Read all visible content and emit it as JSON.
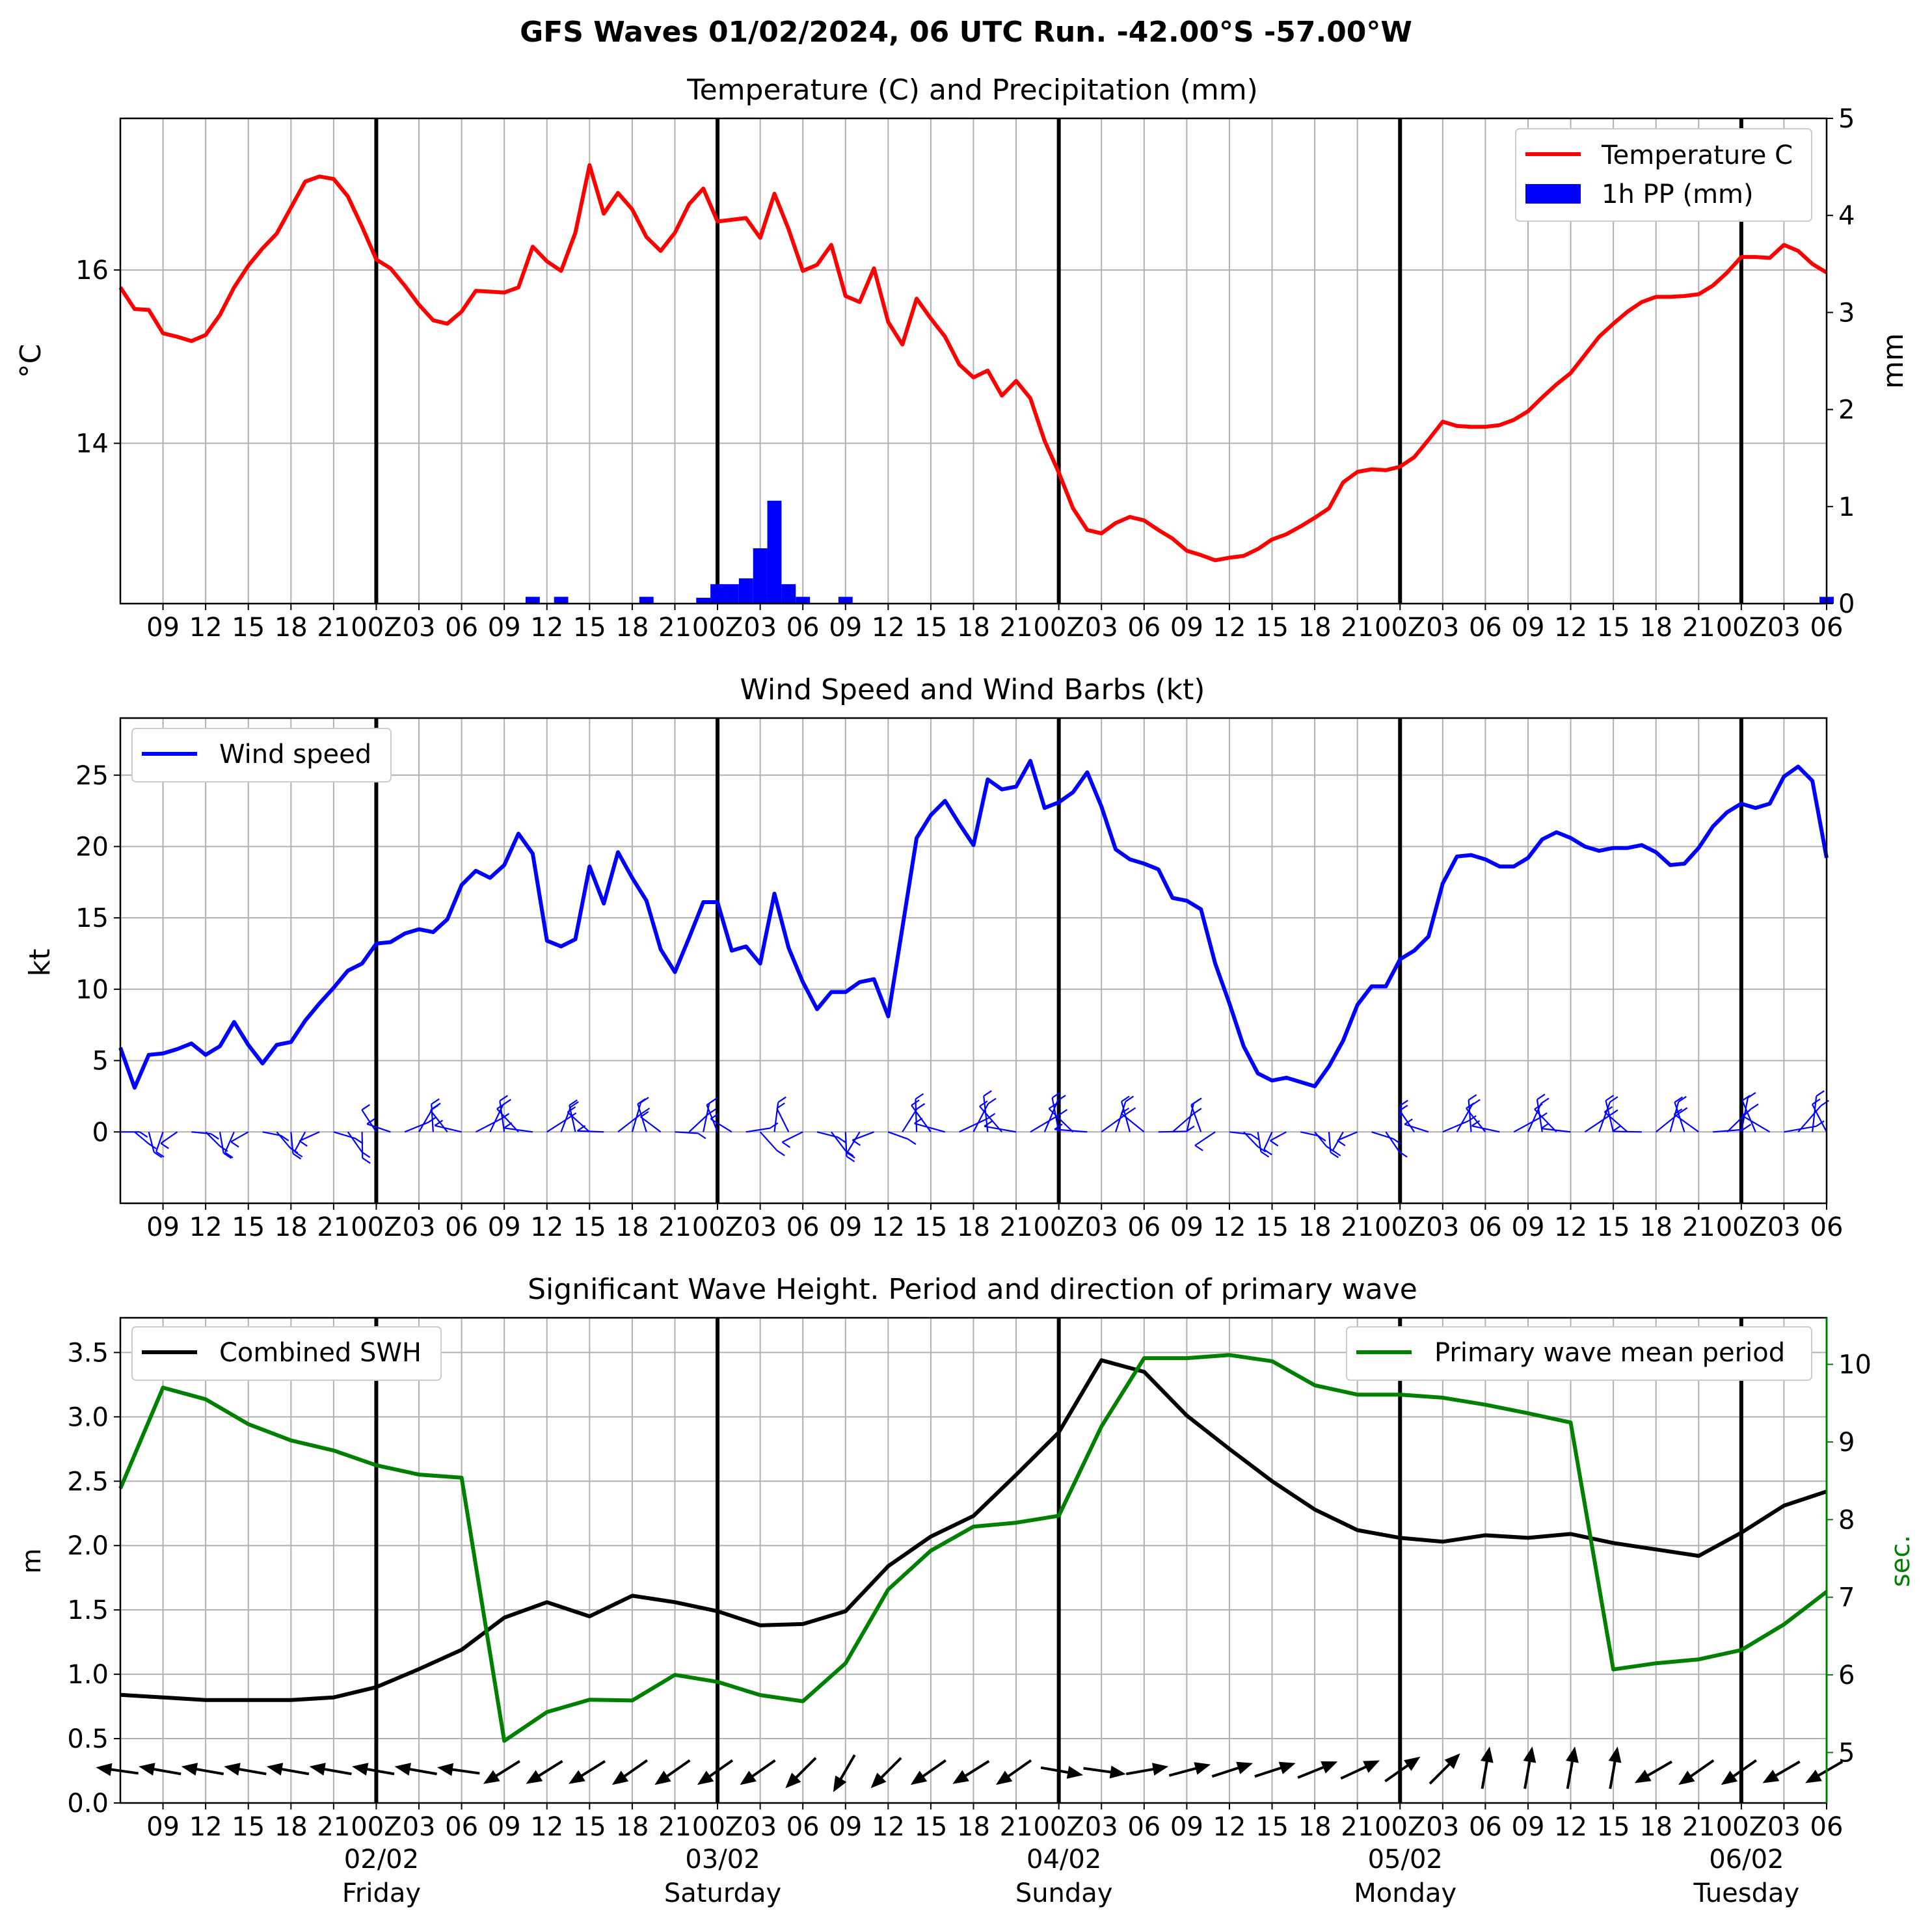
{
  "figure_title": "GFS Waves 01/02/2024, 06 UTC Run. -42.00°S -57.00°W",
  "day_labels": [
    {
      "date": "02/02",
      "day": "Friday"
    },
    {
      "date": "03/02",
      "day": "Saturday"
    },
    {
      "date": "04/02",
      "day": "Sunday"
    },
    {
      "date": "05/02",
      "day": "Monday"
    },
    {
      "date": "06/02",
      "day": "Tuesday"
    }
  ],
  "chart_data": [
    {
      "type": "line",
      "title": "Temperature (C) and Precipitation (mm)",
      "x_unit": "hours since 01/02/2024 06 UTC",
      "xlim": [
        6,
        126
      ],
      "x_ticks": [
        9,
        12,
        15,
        18,
        21,
        24,
        27,
        30,
        33,
        36,
        39,
        42,
        45,
        48,
        51,
        54,
        57,
        60,
        63,
        66,
        69,
        72,
        75,
        78,
        81,
        84,
        87,
        90,
        93,
        96,
        99,
        102,
        105,
        108,
        111,
        114,
        117,
        120,
        123,
        126
      ],
      "x_tick_labels": [
        "09",
        "12",
        "15",
        "18",
        "21",
        "00Z",
        "03",
        "06",
        "09",
        "12",
        "15",
        "18",
        "21",
        "00Z",
        "03",
        "06",
        "09",
        "12",
        "15",
        "18",
        "21",
        "00Z",
        "03",
        "06",
        "09",
        "12",
        "15",
        "18",
        "21",
        "00Z",
        "03",
        "06",
        "09",
        "12",
        "15",
        "18",
        "21",
        "00Z",
        "03",
        "06"
      ],
      "ylabel": "$^\\circ$C",
      "y_ticks": [
        14,
        16
      ],
      "ylim": [
        12.15,
        17.75
      ],
      "y2label": "mm",
      "y2_ticks": [
        0,
        1,
        2,
        3,
        4,
        5
      ],
      "y2lim": [
        0,
        5
      ],
      "grid": true,
      "legend": {
        "position": "top-right",
        "entries": [
          "Temperature C",
          "1h PP (mm)"
        ]
      },
      "series": [
        {
          "name": "Temperature C",
          "color": "#ff0000",
          "x": [
            6,
            7,
            8,
            9,
            10,
            11,
            12,
            13,
            14,
            15,
            16,
            17,
            18,
            19,
            20,
            21,
            22,
            23,
            24,
            25,
            26,
            27,
            28,
            29,
            30,
            31,
            32,
            33,
            34,
            35,
            36,
            37,
            38,
            39,
            40,
            41,
            42,
            43,
            44,
            45,
            46,
            47,
            48,
            49,
            50,
            51,
            52,
            53,
            54,
            55,
            56,
            57,
            58,
            59,
            60,
            61,
            62,
            63,
            64,
            65,
            66,
            67,
            68,
            69,
            70,
            71,
            72,
            73,
            74,
            75,
            76,
            77,
            78,
            79,
            80,
            81,
            82,
            83,
            84,
            85,
            86,
            87,
            88,
            89,
            90,
            91,
            92,
            93,
            94,
            95,
            96,
            97,
            98,
            99,
            100,
            101,
            102,
            103,
            104,
            105,
            106,
            107,
            108,
            109,
            110,
            111,
            112,
            113,
            114,
            115,
            116,
            117,
            118,
            119,
            120,
            121,
            122,
            123,
            124,
            125,
            126
          ],
          "y": [
            15.8,
            15.55,
            15.54,
            15.27,
            15.23,
            15.18,
            15.25,
            15.48,
            15.8,
            16.05,
            16.25,
            16.42,
            16.72,
            17.02,
            17.08,
            17.05,
            16.85,
            16.5,
            16.12,
            16.02,
            15.82,
            15.6,
            15.42,
            15.38,
            15.52,
            15.76,
            15.75,
            15.74,
            15.8,
            16.27,
            16.1,
            15.99,
            16.43,
            17.21,
            16.65,
            16.89,
            16.7,
            16.38,
            16.22,
            16.43,
            16.76,
            16.94,
            16.56,
            16.58,
            16.6,
            16.37,
            16.88,
            16.47,
            15.99,
            16.06,
            16.29,
            15.7,
            15.63,
            16.02,
            15.4,
            15.14,
            15.67,
            15.44,
            15.23,
            14.91,
            14.76,
            14.84,
            14.55,
            14.72,
            14.52,
            14.03,
            13.66,
            13.25,
            13.0,
            12.96,
            13.08,
            13.15,
            13.11,
            13.0,
            12.9,
            12.76,
            12.71,
            12.65,
            12.68,
            12.7,
            12.78,
            12.89,
            12.95,
            13.04,
            13.14,
            13.25,
            13.55,
            13.67,
            13.7,
            13.69,
            13.73,
            13.84,
            14.04,
            14.25,
            14.2,
            14.19,
            14.19,
            14.21,
            14.27,
            14.37,
            14.53,
            14.68,
            14.81,
            15.02,
            15.23,
            15.38,
            15.52,
            15.63,
            15.69,
            15.69,
            15.7,
            15.72,
            15.82,
            15.97,
            16.15,
            16.15,
            16.14,
            16.29,
            16.22,
            16.07,
            15.97
          ]
        },
        {
          "name": "1h PP (mm)",
          "type": "bar",
          "color": "#0000ff",
          "x": [
            35,
            37,
            43,
            47,
            48,
            49,
            50,
            51,
            52,
            53,
            54,
            55,
            57,
            126
          ],
          "y": [
            0.07,
            0.07,
            0.07,
            0.06,
            0.2,
            0.2,
            0.26,
            0.57,
            1.06,
            0.2,
            0.07,
            0.0,
            0.07,
            0.07
          ]
        }
      ]
    },
    {
      "type": "line",
      "title": "Wind Speed and Wind Barbs (kt)",
      "xlim": [
        6,
        126
      ],
      "ylabel": "kt",
      "y_ticks": [
        0,
        5,
        10,
        15,
        20,
        25
      ],
      "ylim": [
        -5,
        29
      ],
      "grid": true,
      "legend": {
        "position": "top-left",
        "entries": [
          "Wind speed"
        ]
      },
      "series": [
        {
          "name": "Wind speed",
          "color": "#0000ff",
          "x": [
            6,
            7,
            8,
            9,
            10,
            11,
            12,
            13,
            14,
            15,
            16,
            17,
            18,
            19,
            20,
            21,
            22,
            23,
            24,
            25,
            26,
            27,
            28,
            29,
            30,
            31,
            32,
            33,
            34,
            35,
            36,
            37,
            38,
            39,
            40,
            41,
            42,
            43,
            44,
            45,
            46,
            47,
            48,
            49,
            50,
            51,
            52,
            53,
            54,
            55,
            56,
            57,
            58,
            59,
            60,
            61,
            62,
            63,
            64,
            65,
            66,
            67,
            68,
            69,
            70,
            71,
            72,
            73,
            74,
            75,
            76,
            77,
            78,
            79,
            80,
            81,
            82,
            83,
            84,
            85,
            86,
            87,
            88,
            89,
            90,
            91,
            92,
            93,
            94,
            95,
            96,
            97,
            98,
            99,
            100,
            101,
            102,
            103,
            104,
            105,
            106,
            107,
            108,
            109,
            110,
            111,
            112,
            113,
            114,
            115,
            116,
            117,
            118,
            119,
            120,
            121,
            122,
            123,
            124,
            125,
            126
          ],
          "y": [
            5.9,
            3.1,
            5.4,
            5.5,
            5.8,
            6.2,
            5.4,
            6.0,
            7.7,
            6.1,
            4.8,
            6.1,
            6.3,
            7.8,
            9.0,
            10.1,
            11.3,
            11.8,
            13.2,
            13.3,
            13.9,
            14.2,
            14.0,
            14.9,
            17.3,
            18.3,
            17.8,
            18.7,
            20.9,
            19.5,
            13.4,
            13.0,
            13.5,
            18.6,
            16.0,
            19.6,
            17.8,
            16.2,
            12.8,
            11.2,
            13.6,
            16.1,
            16.1,
            12.7,
            13.0,
            11.8,
            16.7,
            12.9,
            10.5,
            8.6,
            9.8,
            9.8,
            10.5,
            10.7,
            8.1,
            14.3,
            20.6,
            22.2,
            23.2,
            21.6,
            20.1,
            24.7,
            24.0,
            24.2,
            26.0,
            22.7,
            23.1,
            23.8,
            25.2,
            22.8,
            19.8,
            19.1,
            18.8,
            18.4,
            16.4,
            16.2,
            15.6,
            11.8,
            9.0,
            6.0,
            4.1,
            3.6,
            3.8,
            3.5,
            3.2,
            4.6,
            6.4,
            8.9,
            10.2,
            10.2,
            12.1,
            12.7,
            13.7,
            17.4,
            19.3,
            19.4,
            19.1,
            18.6,
            18.6,
            19.2,
            20.5,
            21.0,
            20.6,
            20.0,
            19.7,
            19.9,
            19.9,
            20.1,
            19.6,
            18.7,
            18.8,
            19.9,
            21.4,
            22.4,
            23.0,
            22.7,
            23.0,
            24.9,
            25.6,
            24.6,
            19.2
          ]
        }
      ]
    },
    {
      "type": "line",
      "title": "Significant Wave Height. Period and direction of primary wave",
      "xlim": [
        6,
        126
      ],
      "ylabel": "m",
      "y_ticks": [
        0.0,
        0.5,
        1.0,
        1.5,
        2.0,
        2.5,
        3.0,
        3.5
      ],
      "ylim": [
        0,
        3.77
      ],
      "y2label": "sec.",
      "y2_ticks": [
        5,
        6,
        7,
        8,
        9,
        10
      ],
      "y2lim": [
        4.35,
        10.6
      ],
      "grid": true,
      "legend_left": {
        "position": "top-left",
        "entries": [
          "Combined SWH"
        ]
      },
      "legend_right": {
        "position": "top-right",
        "entries": [
          "Primary wave mean period"
        ]
      },
      "series": [
        {
          "name": "Combined SWH",
          "color": "#000000",
          "x": [
            6,
            9,
            12,
            15,
            18,
            21,
            24,
            27,
            30,
            33,
            36,
            39,
            42,
            45,
            48,
            51,
            54,
            57,
            60,
            63,
            66,
            69,
            72,
            75,
            78,
            81,
            84,
            87,
            90,
            93,
            96,
            99,
            102,
            105,
            108,
            111,
            114,
            117,
            120,
            123,
            126
          ],
          "y": [
            0.84,
            0.82,
            0.8,
            0.8,
            0.8,
            0.82,
            0.9,
            1.04,
            1.19,
            1.44,
            1.56,
            1.45,
            1.61,
            1.56,
            1.49,
            1.38,
            1.39,
            1.49,
            1.84,
            2.07,
            2.23,
            2.55,
            2.88,
            3.44,
            3.35,
            3.01,
            2.75,
            2.5,
            2.28,
            2.12,
            2.06,
            2.03,
            2.08,
            2.06,
            2.09,
            2.02,
            1.97,
            1.92,
            2.1,
            2.31,
            2.42
          ]
        },
        {
          "name": "Primary wave mean period",
          "color": "#008000",
          "x": [
            6,
            9,
            12,
            15,
            18,
            21,
            24,
            27,
            30,
            33,
            36,
            39,
            42,
            45,
            48,
            51,
            54,
            57,
            60,
            63,
            66,
            69,
            72,
            75,
            78,
            81,
            84,
            87,
            90,
            93,
            96,
            99,
            102,
            105,
            108,
            111,
            114,
            117,
            120,
            123,
            126
          ],
          "y": [
            8.4,
            9.7,
            9.55,
            9.23,
            9.02,
            8.89,
            8.7,
            8.58,
            8.54,
            5.15,
            5.52,
            5.68,
            5.67,
            6.0,
            5.91,
            5.74,
            5.66,
            6.15,
            7.1,
            7.6,
            7.91,
            7.96,
            8.05,
            9.2,
            10.08,
            10.08,
            10.12,
            10.04,
            9.73,
            9.61,
            9.61,
            9.57,
            9.48,
            9.37,
            9.25,
            6.07,
            6.15,
            6.2,
            6.32,
            6.65,
            7.07
          ]
        },
        {
          "name": "direction",
          "type": "arrows",
          "color": "#000000",
          "x": [
            6,
            9,
            12,
            15,
            18,
            21,
            24,
            27,
            30,
            33,
            36,
            39,
            42,
            45,
            48,
            51,
            54,
            57,
            60,
            63,
            66,
            69,
            72,
            75,
            78,
            81,
            84,
            87,
            90,
            93,
            96,
            99,
            102,
            105,
            108,
            111,
            114,
            117,
            120,
            123,
            126
          ],
          "angle_deg": [
            172,
            170,
            170,
            170,
            170,
            170,
            170,
            170,
            172,
            212,
            212,
            212,
            215,
            215,
            215,
            215,
            225,
            240,
            225,
            215,
            212,
            215,
            350,
            352,
            10,
            15,
            18,
            18,
            22,
            25,
            35,
            45,
            80,
            80,
            80,
            80,
            210,
            215,
            215,
            210,
            210
          ]
        }
      ]
    }
  ]
}
